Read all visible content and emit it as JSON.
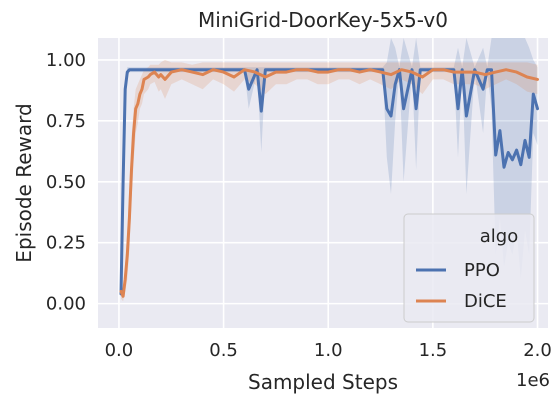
{
  "chart_data": {
    "type": "line",
    "title": "MiniGrid-DoorKey-5x5-v0",
    "xlabel": "Sampled Steps",
    "ylabel": "Episode Reward",
    "x_scale_label": "1e6",
    "xlim": [
      -0.1,
      2.05
    ],
    "ylim": [
      -0.1,
      1.09
    ],
    "x_ticks": [
      0.0,
      0.5,
      1.0,
      1.5,
      2.0
    ],
    "x_tick_labels": [
      "0.0",
      "0.5",
      "1.0",
      "1.5",
      "2.0"
    ],
    "y_ticks": [
      0.0,
      0.25,
      0.5,
      0.75,
      1.0
    ],
    "y_tick_labels": [
      "0.00",
      "0.25",
      "0.50",
      "0.75",
      "1.00"
    ],
    "grid": true,
    "background": "#eaeaf2",
    "legend": {
      "title": "algo",
      "placement": "lower-right"
    },
    "series": [
      {
        "name": "PPO",
        "color": "#4c72b0",
        "x": [
          0.01,
          0.02,
          0.03,
          0.04,
          0.05,
          0.07,
          0.1,
          0.2,
          0.3,
          0.4,
          0.5,
          0.6,
          0.62,
          0.66,
          0.68,
          0.7,
          0.72,
          0.8,
          0.9,
          1.0,
          1.1,
          1.2,
          1.26,
          1.28,
          1.3,
          1.32,
          1.34,
          1.36,
          1.4,
          1.42,
          1.44,
          1.46,
          1.5,
          1.55,
          1.6,
          1.62,
          1.64,
          1.66,
          1.7,
          1.74,
          1.76,
          1.78,
          1.8,
          1.82,
          1.84,
          1.86,
          1.88,
          1.9,
          1.92,
          1.94,
          1.96,
          1.98,
          2.0
        ],
        "y": [
          0.04,
          0.5,
          0.88,
          0.95,
          0.96,
          0.96,
          0.96,
          0.96,
          0.96,
          0.96,
          0.96,
          0.96,
          0.88,
          0.96,
          0.79,
          0.96,
          0.96,
          0.96,
          0.96,
          0.96,
          0.96,
          0.96,
          0.96,
          0.8,
          0.77,
          0.9,
          0.96,
          0.8,
          0.96,
          0.8,
          0.96,
          0.96,
          0.96,
          0.96,
          0.96,
          0.8,
          0.96,
          0.77,
          0.96,
          0.88,
          0.96,
          0.96,
          0.61,
          0.71,
          0.56,
          0.62,
          0.59,
          0.63,
          0.57,
          0.67,
          0.6,
          0.86,
          0.8
        ],
        "band_upper": [
          0.06,
          0.55,
          0.92,
          0.97,
          0.97,
          0.97,
          0.97,
          0.97,
          0.97,
          0.97,
          0.97,
          0.97,
          0.97,
          0.97,
          0.97,
          0.97,
          0.97,
          0.97,
          0.97,
          0.97,
          0.97,
          0.97,
          0.97,
          0.99,
          1.09,
          1.05,
          0.97,
          1.09,
          0.97,
          1.09,
          0.97,
          0.97,
          0.97,
          0.97,
          0.97,
          1.05,
          0.97,
          1.09,
          0.97,
          1.05,
          0.97,
          1.09,
          1.09,
          1.09,
          1.09,
          1.09,
          1.09,
          1.09,
          1.09,
          1.09,
          1.05,
          1.0,
          0.97
        ],
        "band_lower": [
          0.02,
          0.44,
          0.84,
          0.93,
          0.95,
          0.95,
          0.95,
          0.95,
          0.95,
          0.95,
          0.95,
          0.95,
          0.8,
          0.95,
          0.62,
          0.95,
          0.95,
          0.95,
          0.95,
          0.95,
          0.95,
          0.95,
          0.95,
          0.6,
          0.45,
          0.75,
          0.95,
          0.5,
          0.95,
          0.55,
          0.95,
          0.95,
          0.95,
          0.95,
          0.95,
          0.6,
          0.95,
          0.45,
          0.95,
          0.7,
          0.95,
          0.8,
          0.2,
          0.35,
          0.15,
          0.25,
          0.2,
          0.3,
          0.1,
          0.3,
          0.2,
          0.7,
          0.65
        ]
      },
      {
        "name": "DiCE",
        "color": "#dd8452",
        "x": [
          0.01,
          0.02,
          0.03,
          0.04,
          0.05,
          0.06,
          0.07,
          0.08,
          0.09,
          0.1,
          0.11,
          0.12,
          0.14,
          0.15,
          0.17,
          0.19,
          0.2,
          0.22,
          0.25,
          0.3,
          0.35,
          0.4,
          0.45,
          0.5,
          0.55,
          0.6,
          0.65,
          0.7,
          0.75,
          0.8,
          0.85,
          0.9,
          0.95,
          1.0,
          1.05,
          1.1,
          1.15,
          1.2,
          1.25,
          1.3,
          1.35,
          1.4,
          1.45,
          1.5,
          1.55,
          1.6,
          1.65,
          1.7,
          1.75,
          1.8,
          1.85,
          1.9,
          1.95,
          2.0
        ],
        "y": [
          0.05,
          0.03,
          0.1,
          0.2,
          0.35,
          0.55,
          0.7,
          0.8,
          0.82,
          0.86,
          0.88,
          0.92,
          0.93,
          0.94,
          0.95,
          0.93,
          0.94,
          0.92,
          0.95,
          0.96,
          0.95,
          0.94,
          0.96,
          0.95,
          0.93,
          0.96,
          0.95,
          0.93,
          0.95,
          0.95,
          0.96,
          0.96,
          0.95,
          0.95,
          0.96,
          0.96,
          0.95,
          0.96,
          0.95,
          0.94,
          0.96,
          0.95,
          0.93,
          0.96,
          0.96,
          0.95,
          0.95,
          0.95,
          0.94,
          0.95,
          0.96,
          0.95,
          0.93,
          0.92
        ],
        "band_upper": [
          0.08,
          0.06,
          0.16,
          0.3,
          0.48,
          0.68,
          0.8,
          0.88,
          0.9,
          0.92,
          0.94,
          0.96,
          0.97,
          0.98,
          0.98,
          0.98,
          0.99,
          1.0,
          0.99,
          0.99,
          0.98,
          0.99,
          0.99,
          0.99,
          0.99,
          0.99,
          0.99,
          0.99,
          0.99,
          0.99,
          0.99,
          0.99,
          0.99,
          0.99,
          0.99,
          0.99,
          0.99,
          0.99,
          0.99,
          0.99,
          0.99,
          0.99,
          0.99,
          0.99,
          0.99,
          0.99,
          0.99,
          0.99,
          0.99,
          0.99,
          0.99,
          0.99,
          0.99,
          0.98
        ],
        "band_lower": [
          0.02,
          0.01,
          0.05,
          0.1,
          0.22,
          0.42,
          0.58,
          0.7,
          0.74,
          0.8,
          0.82,
          0.86,
          0.88,
          0.9,
          0.91,
          0.87,
          0.88,
          0.84,
          0.9,
          0.92,
          0.9,
          0.88,
          0.92,
          0.9,
          0.87,
          0.92,
          0.9,
          0.86,
          0.9,
          0.9,
          0.92,
          0.92,
          0.9,
          0.9,
          0.92,
          0.92,
          0.9,
          0.92,
          0.9,
          0.88,
          0.92,
          0.9,
          0.86,
          0.92,
          0.92,
          0.9,
          0.9,
          0.9,
          0.88,
          0.9,
          0.92,
          0.9,
          0.87,
          0.86
        ]
      }
    ]
  }
}
